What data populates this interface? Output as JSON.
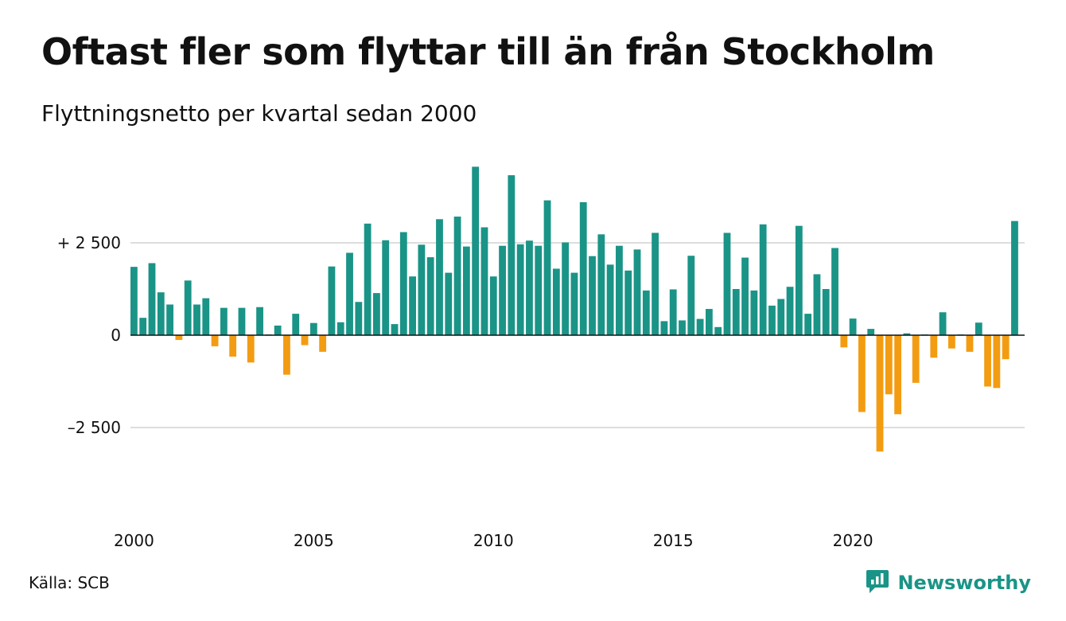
{
  "header": {
    "title": "Oftast fler som flyttar till än från Stockholm",
    "subtitle": "Flyttningsnetto per kvartal sedan 2000"
  },
  "footer": {
    "source": "Källa: SCB",
    "brand": "Newsworthy"
  },
  "colors": {
    "positive": "#1a9487",
    "negative": "#f39c12",
    "gridline": "#dddddd",
    "zeroline": "#111111",
    "brand": "#1a9487"
  },
  "icons": {
    "brand_logo": "newsworthy-chart-bubble-icon"
  },
  "chart_data": {
    "type": "bar",
    "title": "Oftast fler som flyttar till än från Stockholm",
    "subtitle": "Flyttningsnetto per kvartal sedan 2000",
    "xlabel": "",
    "ylabel": "",
    "ylim": [
      -4800,
      4800
    ],
    "y_ticks": [
      {
        "value": 2500,
        "label": "+ 2 500"
      },
      {
        "value": 0,
        "label": "0"
      },
      {
        "value": -2500,
        "label": "–2 500"
      }
    ],
    "x_ticks": [
      {
        "value": "2000",
        "label": "2000"
      },
      {
        "value": "2005",
        "label": "2005"
      },
      {
        "value": "2010",
        "label": "2010"
      },
      {
        "value": "2015",
        "label": "2015"
      },
      {
        "value": "2020",
        "label": "2020"
      }
    ],
    "grid": true,
    "legend": "none",
    "series": [
      {
        "values": [
          {
            "x": "2000 Q1",
            "y": 1850
          },
          {
            "x": "2000 Q2",
            "y": 470
          },
          {
            "x": "2000 Q3",
            "y": 1950
          },
          {
            "x": "2000 Q4",
            "y": 1160
          },
          {
            "x": "2001 Q1",
            "y": 830
          },
          {
            "x": "2001 Q2",
            "y": -130
          },
          {
            "x": "2001 Q3",
            "y": 1480
          },
          {
            "x": "2001 Q4",
            "y": 830
          },
          {
            "x": "2002 Q1",
            "y": 1000
          },
          {
            "x": "2002 Q2",
            "y": -300
          },
          {
            "x": "2002 Q3",
            "y": 740
          },
          {
            "x": "2002 Q4",
            "y": -580
          },
          {
            "x": "2003 Q1",
            "y": 740
          },
          {
            "x": "2003 Q2",
            "y": -740
          },
          {
            "x": "2003 Q3",
            "y": 760
          },
          {
            "x": "2003 Q4",
            "y": 20
          },
          {
            "x": "2004 Q1",
            "y": 260
          },
          {
            "x": "2004 Q2",
            "y": -1070
          },
          {
            "x": "2004 Q3",
            "y": 580
          },
          {
            "x": "2004 Q4",
            "y": -270
          },
          {
            "x": "2005 Q1",
            "y": 330
          },
          {
            "x": "2005 Q2",
            "y": -450
          },
          {
            "x": "2005 Q3",
            "y": 1860
          },
          {
            "x": "2005 Q4",
            "y": 350
          },
          {
            "x": "2006 Q1",
            "y": 2230
          },
          {
            "x": "2006 Q2",
            "y": 900
          },
          {
            "x": "2006 Q3",
            "y": 3020
          },
          {
            "x": "2006 Q4",
            "y": 1140
          },
          {
            "x": "2007 Q1",
            "y": 2570
          },
          {
            "x": "2007 Q2",
            "y": 300
          },
          {
            "x": "2007 Q3",
            "y": 2790
          },
          {
            "x": "2007 Q4",
            "y": 1590
          },
          {
            "x": "2008 Q1",
            "y": 2450
          },
          {
            "x": "2008 Q2",
            "y": 2110
          },
          {
            "x": "2008 Q3",
            "y": 3140
          },
          {
            "x": "2008 Q4",
            "y": 1690
          },
          {
            "x": "2009 Q1",
            "y": 3210
          },
          {
            "x": "2009 Q2",
            "y": 2400
          },
          {
            "x": "2009 Q3",
            "y": 4560
          },
          {
            "x": "2009 Q4",
            "y": 2920
          },
          {
            "x": "2010 Q1",
            "y": 1590
          },
          {
            "x": "2010 Q2",
            "y": 2420
          },
          {
            "x": "2010 Q3",
            "y": 4330
          },
          {
            "x": "2010 Q4",
            "y": 2460
          },
          {
            "x": "2011 Q1",
            "y": 2560
          },
          {
            "x": "2011 Q2",
            "y": 2420
          },
          {
            "x": "2011 Q3",
            "y": 3650
          },
          {
            "x": "2011 Q4",
            "y": 1800
          },
          {
            "x": "2012 Q1",
            "y": 2510
          },
          {
            "x": "2012 Q2",
            "y": 1690
          },
          {
            "x": "2012 Q3",
            "y": 3600
          },
          {
            "x": "2012 Q4",
            "y": 2140
          },
          {
            "x": "2013 Q1",
            "y": 2730
          },
          {
            "x": "2013 Q2",
            "y": 1910
          },
          {
            "x": "2013 Q3",
            "y": 2420
          },
          {
            "x": "2013 Q4",
            "y": 1750
          },
          {
            "x": "2014 Q1",
            "y": 2320
          },
          {
            "x": "2014 Q2",
            "y": 1210
          },
          {
            "x": "2014 Q3",
            "y": 2770
          },
          {
            "x": "2014 Q4",
            "y": 380
          },
          {
            "x": "2015 Q1",
            "y": 1240
          },
          {
            "x": "2015 Q2",
            "y": 400
          },
          {
            "x": "2015 Q3",
            "y": 2150
          },
          {
            "x": "2015 Q4",
            "y": 440
          },
          {
            "x": "2016 Q1",
            "y": 710
          },
          {
            "x": "2016 Q2",
            "y": 220
          },
          {
            "x": "2016 Q3",
            "y": 2770
          },
          {
            "x": "2016 Q4",
            "y": 1250
          },
          {
            "x": "2017 Q1",
            "y": 2100
          },
          {
            "x": "2017 Q2",
            "y": 1210
          },
          {
            "x": "2017 Q3",
            "y": 3000
          },
          {
            "x": "2017 Q4",
            "y": 800
          },
          {
            "x": "2018 Q1",
            "y": 980
          },
          {
            "x": "2018 Q2",
            "y": 1310
          },
          {
            "x": "2018 Q3",
            "y": 2960
          },
          {
            "x": "2018 Q4",
            "y": 580
          },
          {
            "x": "2019 Q1",
            "y": 1650
          },
          {
            "x": "2019 Q2",
            "y": 1250
          },
          {
            "x": "2019 Q3",
            "y": 2360
          },
          {
            "x": "2019 Q4",
            "y": -330
          },
          {
            "x": "2020 Q1",
            "y": 450
          },
          {
            "x": "2020 Q2",
            "y": -2080
          },
          {
            "x": "2020 Q3",
            "y": 170
          },
          {
            "x": "2020 Q4",
            "y": -3150
          },
          {
            "x": "2021 Q1",
            "y": -1600
          },
          {
            "x": "2021 Q2",
            "y": -2140
          },
          {
            "x": "2021 Q3",
            "y": 50
          },
          {
            "x": "2021 Q4",
            "y": -1290
          },
          {
            "x": "2022 Q1",
            "y": 20
          },
          {
            "x": "2022 Q2",
            "y": -610
          },
          {
            "x": "2022 Q3",
            "y": 620
          },
          {
            "x": "2022 Q4",
            "y": -360
          },
          {
            "x": "2023 Q1",
            "y": 20
          },
          {
            "x": "2023 Q2",
            "y": -450
          },
          {
            "x": "2023 Q3",
            "y": 340
          },
          {
            "x": "2023 Q4",
            "y": -1390
          },
          {
            "x": "2024 Q1",
            "y": -1430
          },
          {
            "x": "2024 Q2",
            "y": -650
          },
          {
            "x": "2024 Q3",
            "y": 3090
          }
        ]
      }
    ]
  }
}
